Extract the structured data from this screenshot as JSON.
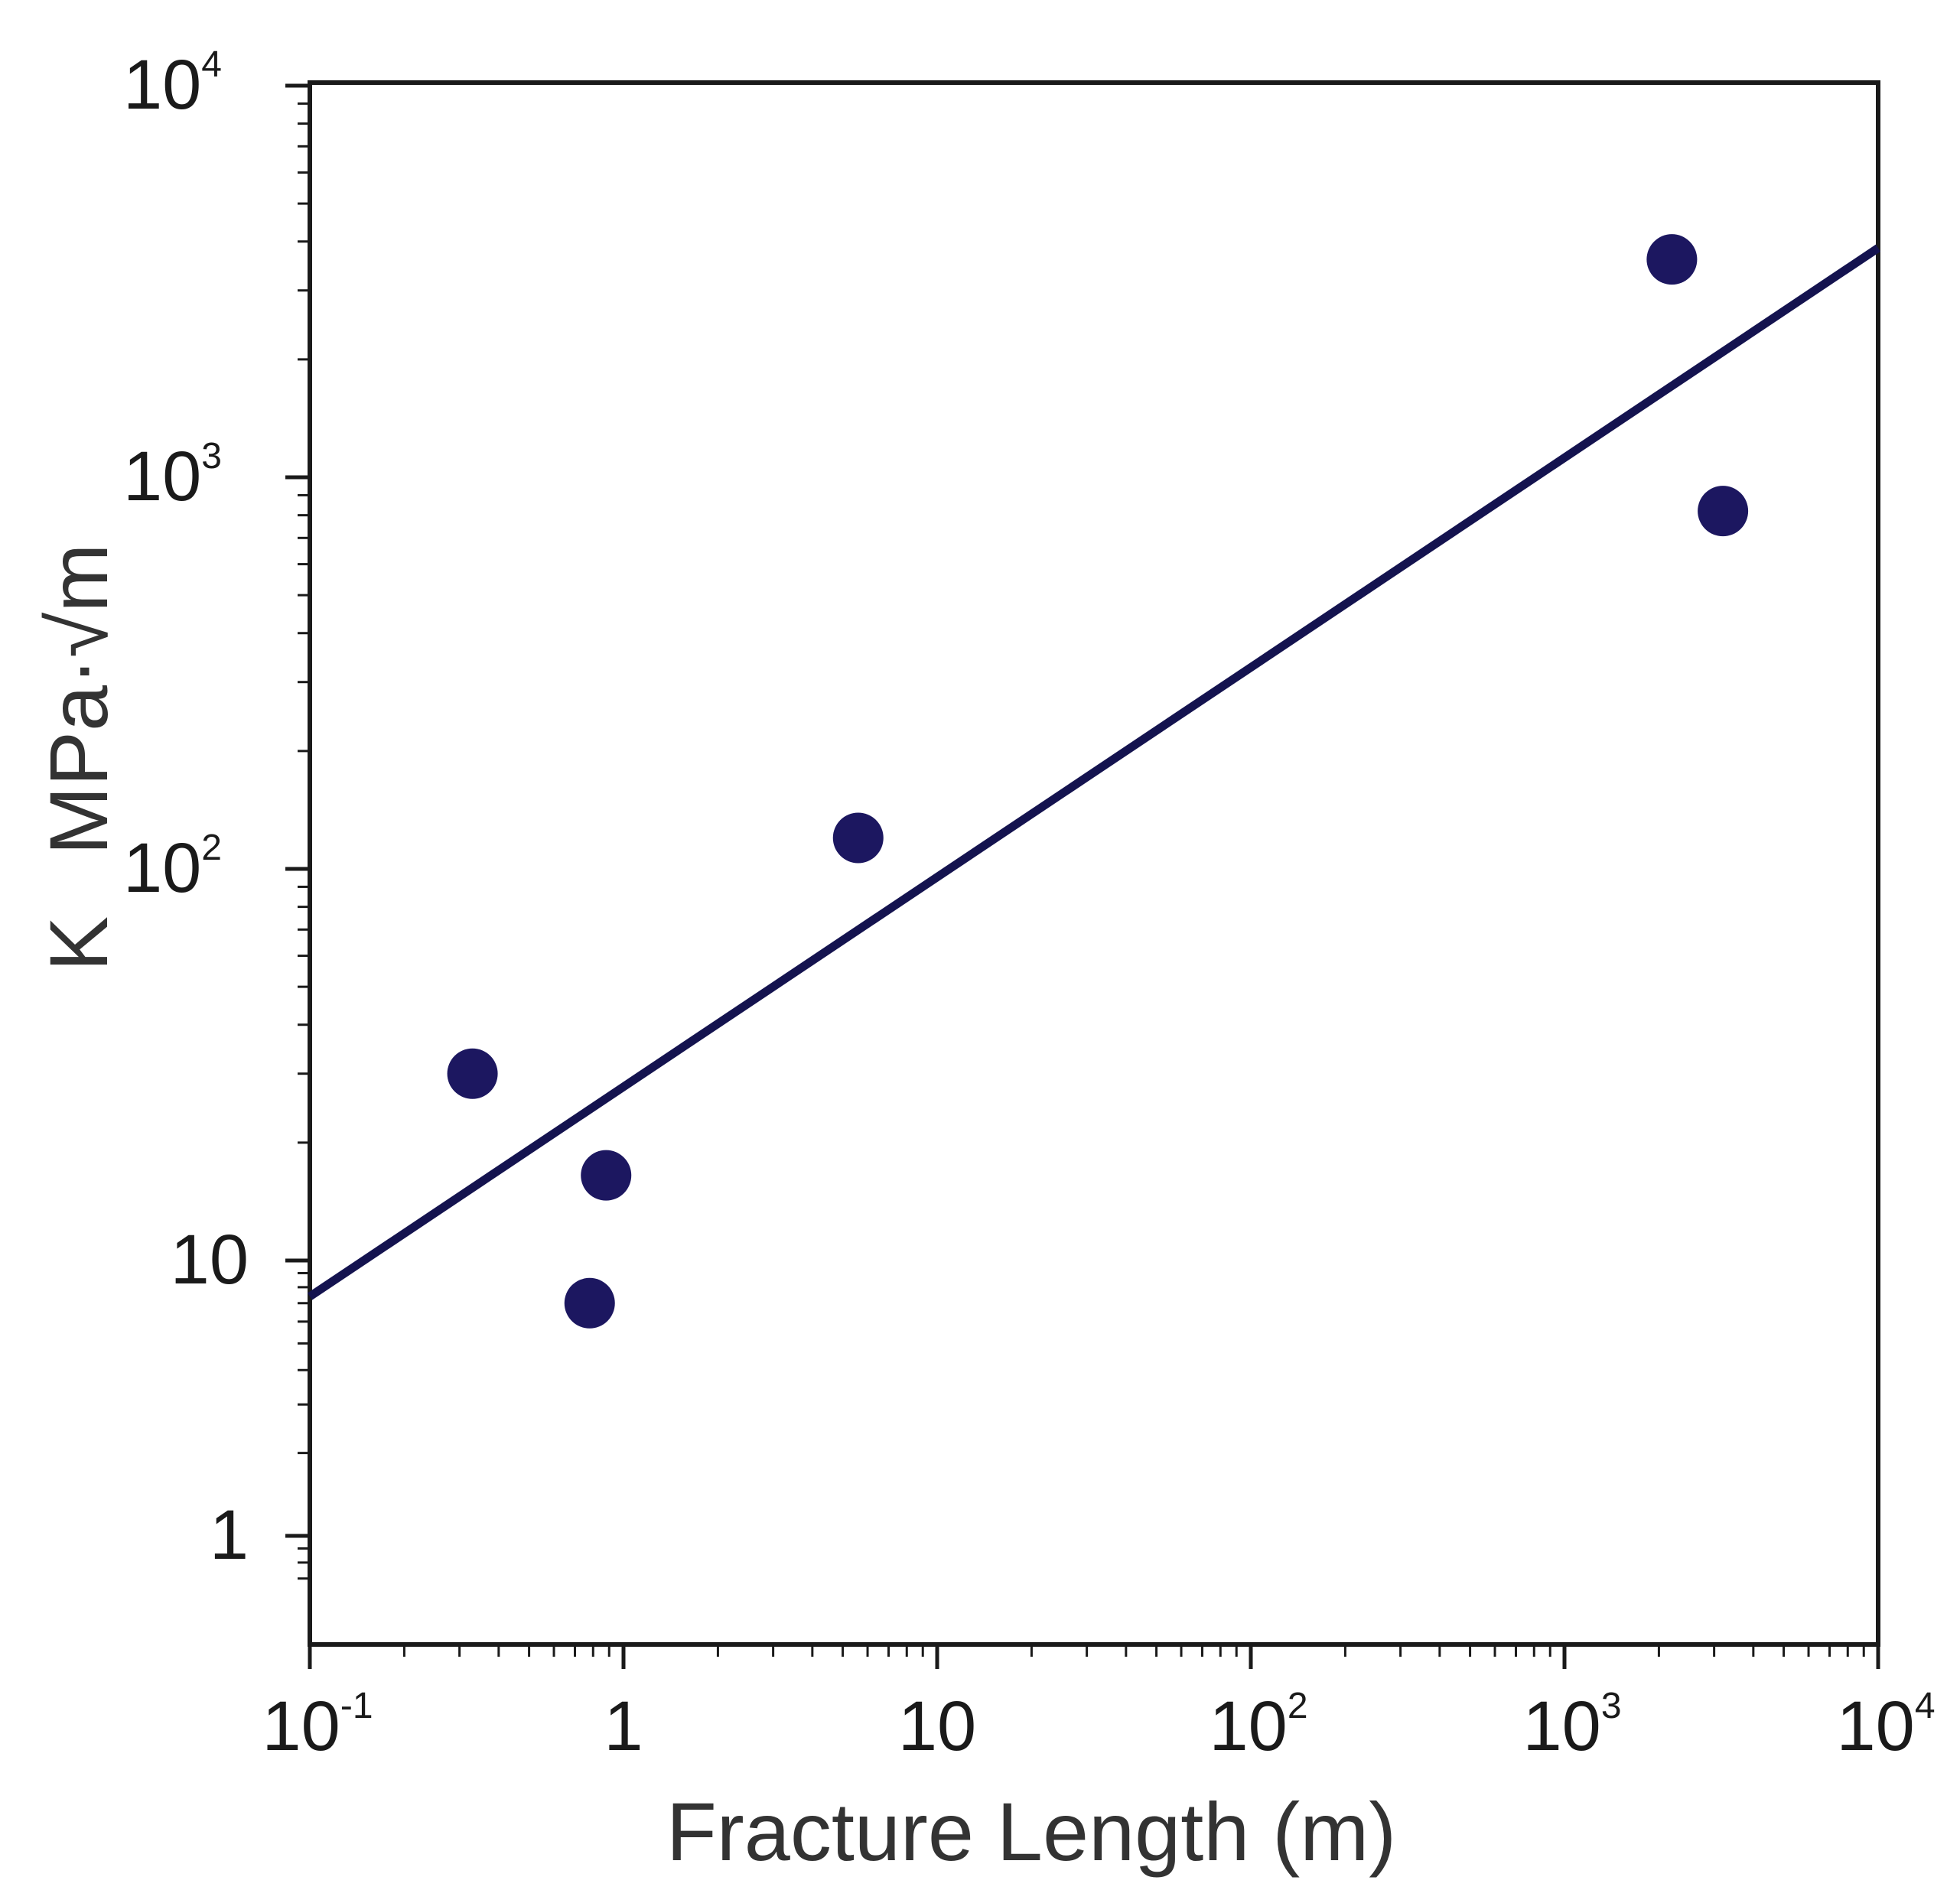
{
  "chart_data": {
    "type": "scatter",
    "xscale": "log",
    "yscale": "log",
    "xlim": [
      0.1,
      10000
    ],
    "ylim": [
      0.7,
      10000
    ],
    "xlabel": "Fracture Length (m)",
    "ylabel_prefix": "K",
    "ylabel_unit": "MPa·",
    "ylabel_root": "m",
    "x_ticks": [
      {
        "value": 0.1,
        "base": "10",
        "exp": "-1"
      },
      {
        "value": 1,
        "base": "1",
        "exp": ""
      },
      {
        "value": 10,
        "base": "10",
        "exp": ""
      },
      {
        "value": 100,
        "base": "10",
        "exp": "2"
      },
      {
        "value": 1000,
        "base": "10",
        "exp": "3"
      },
      {
        "value": 10000,
        "base": "10",
        "exp": "4"
      }
    ],
    "y_ticks": [
      {
        "value": 1,
        "base": "1",
        "exp": ""
      },
      {
        "value": 10,
        "base": "10",
        "exp": ""
      },
      {
        "value": 100,
        "base": "10",
        "exp": "2"
      },
      {
        "value": 1000,
        "base": "10",
        "exp": "3"
      },
      {
        "value": 10000,
        "base": "10",
        "exp": "4"
      }
    ],
    "points": [
      {
        "x": 0.33,
        "y": 30
      },
      {
        "x": 0.78,
        "y": 7
      },
      {
        "x": 0.88,
        "y": 16.5
      },
      {
        "x": 5.6,
        "y": 120
      },
      {
        "x": 2200,
        "y": 3600
      },
      {
        "x": 3200,
        "y": 820
      }
    ],
    "fit_line": {
      "x": [
        0.1,
        10000
      ],
      "y": [
        7.4,
        3850
      ]
    },
    "colors": {
      "marker": "#1c1760",
      "line": "#14134f",
      "axis": "#1a1a1a"
    },
    "grid": false
  }
}
